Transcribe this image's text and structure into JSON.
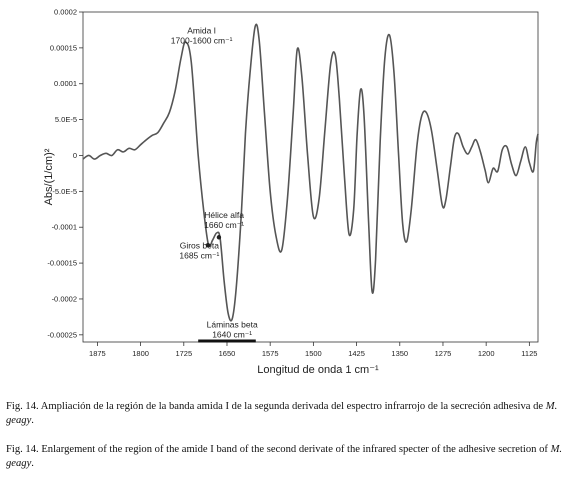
{
  "chart_data": {
    "type": "line",
    "xlabel": "Longitud de onda 1 cm⁻¹",
    "ylabel": "Abs/(1/cm)²",
    "xlim": [
      1900,
      1110
    ],
    "x_reversed": true,
    "ylim": [
      -0.00026,
      0.0002
    ],
    "x_ticks": [
      1875,
      1800,
      1725,
      1650,
      1575,
      1500,
      1425,
      1350,
      1275,
      1200,
      1125
    ],
    "y_ticks": [
      {
        "value": 0.0002,
        "label": "0.0002"
      },
      {
        "value": 0.00015,
        "label": "0.00015"
      },
      {
        "value": 0.0001,
        "label": "0.0001"
      },
      {
        "value": 5e-05,
        "label": "5.0E-5"
      },
      {
        "value": 0,
        "label": "0"
      },
      {
        "value": -5e-05,
        "label": "-5.0E-5"
      },
      {
        "value": -0.0001,
        "label": "-0.0001"
      },
      {
        "value": -0.00015,
        "label": "-0.00015"
      },
      {
        "value": -0.0002,
        "label": "-0.0002"
      },
      {
        "value": -0.00025,
        "label": "-0.00025"
      }
    ],
    "grid": false,
    "band_bar": {
      "x_start": 1700,
      "x_end": 1600
    },
    "series": [
      {
        "points": [
          [
            1900,
            -5e-06
          ],
          [
            1890,
            0.0
          ],
          [
            1880,
            -5e-06
          ],
          [
            1870,
            0.0
          ],
          [
            1860,
            3e-06
          ],
          [
            1850,
            0.0
          ],
          [
            1840,
            8e-06
          ],
          [
            1830,
            5e-06
          ],
          [
            1820,
            1e-05
          ],
          [
            1810,
            8e-06
          ],
          [
            1800,
            1.5e-05
          ],
          [
            1790,
            2.2e-05
          ],
          [
            1780,
            2.8e-05
          ],
          [
            1770,
            3.2e-05
          ],
          [
            1760,
            4.5e-05
          ],
          [
            1750,
            6e-05
          ],
          [
            1740,
            9e-05
          ],
          [
            1730,
            0.000135
          ],
          [
            1722,
            0.000158
          ],
          [
            1712,
            0.00013
          ],
          [
            1700,
            0.0
          ],
          [
            1690,
            -8e-05
          ],
          [
            1682,
            -0.000125
          ],
          [
            1675,
            -0.000118
          ],
          [
            1668,
            -0.000108
          ],
          [
            1662,
            -0.000115
          ],
          [
            1655,
            -0.000175
          ],
          [
            1648,
            -0.00022
          ],
          [
            1641,
            -0.000228
          ],
          [
            1634,
            -0.000185
          ],
          [
            1625,
            -8e-05
          ],
          [
            1618,
            3e-05
          ],
          [
            1610,
            0.000115
          ],
          [
            1601,
            0.00018
          ],
          [
            1594,
            0.00016
          ],
          [
            1585,
            6e-05
          ],
          [
            1575,
            -5e-05
          ],
          [
            1565,
            -0.000112
          ],
          [
            1555,
            -0.000132
          ],
          [
            1545,
            -6e-05
          ],
          [
            1535,
            6e-05
          ],
          [
            1528,
            0.000148
          ],
          [
            1520,
            0.00011
          ],
          [
            1510,
            0.0
          ],
          [
            1500,
            -8.5e-05
          ],
          [
            1490,
            -6e-05
          ],
          [
            1480,
            3.5e-05
          ],
          [
            1470,
            0.000128
          ],
          [
            1462,
            0.00014
          ],
          [
            1455,
            8e-05
          ],
          [
            1446,
            -3e-05
          ],
          [
            1438,
            -0.00011
          ],
          [
            1430,
            -7.5e-05
          ],
          [
            1424,
            3e-05
          ],
          [
            1418,
            9.2e-05
          ],
          [
            1412,
            5.5e-05
          ],
          [
            1404,
            -9.5e-05
          ],
          [
            1398,
            -0.00019
          ],
          [
            1392,
            -0.000145
          ],
          [
            1384,
            2e-05
          ],
          [
            1376,
            0.000135
          ],
          [
            1368,
            0.000168
          ],
          [
            1360,
            0.000115
          ],
          [
            1352,
            0.0
          ],
          [
            1345,
            -9.5e-05
          ],
          [
            1338,
            -0.00012
          ],
          [
            1330,
            -7.5e-05
          ],
          [
            1320,
            1.5e-05
          ],
          [
            1312,
            5.5e-05
          ],
          [
            1304,
            6e-05
          ],
          [
            1295,
            3.5e-05
          ],
          [
            1285,
            -2e-05
          ],
          [
            1276,
            -7e-05
          ],
          [
            1270,
            -6.2e-05
          ],
          [
            1262,
            -1.5e-05
          ],
          [
            1255,
            2.5e-05
          ],
          [
            1248,
            3e-05
          ],
          [
            1240,
            1.2e-05
          ],
          [
            1232,
            2e-06
          ],
          [
            1225,
            1.2e-05
          ],
          [
            1218,
            2.2e-05
          ],
          [
            1210,
            5e-06
          ],
          [
            1202,
            -2e-05
          ],
          [
            1196,
            -3.8e-05
          ],
          [
            1188,
            -1.8e-05
          ],
          [
            1180,
            -2.2e-05
          ],
          [
            1172,
            8e-06
          ],
          [
            1164,
            1.2e-05
          ],
          [
            1156,
            -1.2e-05
          ],
          [
            1148,
            -2.8e-05
          ],
          [
            1140,
            -8e-06
          ],
          [
            1132,
            1.2e-05
          ],
          [
            1125,
            -1e-05
          ],
          [
            1118,
            -2.2e-05
          ],
          [
            1113,
            1.8e-05
          ],
          [
            1110,
            3e-05
          ]
        ]
      }
    ],
    "annotations": [
      {
        "lines": [
          "Amida I",
          "1700-1600 cm⁻¹"
        ],
        "x": 1694,
        "y": 0.00017,
        "align": "middle"
      },
      {
        "lines": [
          "Hélice alfa",
          "1660 cm⁻¹"
        ],
        "x": 1655,
        "y": -8.7e-05,
        "align": "middle"
      },
      {
        "lines": [
          "Giros beta",
          "1685 cm⁻¹"
        ],
        "x": 1698,
        "y": -0.00013,
        "align": "middle"
      },
      {
        "lines": [
          "Láminas beta",
          "1640 cm⁻¹"
        ],
        "x": 1641,
        "y": -0.00024,
        "align": "middle"
      }
    ],
    "markers": [
      {
        "x": 1683,
        "y": -0.000125
      },
      {
        "x": 1664,
        "y": -0.000114
      }
    ]
  },
  "caption_es": {
    "text": "Fig. 14. Ampliación de la región de la banda amida I de la segunda derivada del espectro infrarrojo de la secreción adhesiva de ",
    "species": "M. geagy",
    "end": "."
  },
  "caption_en": {
    "text": "Fig. 14. Enlargement of the region of the amide I band of the second derivate of the infrared specter of the adhesive secretion of ",
    "species": "M. geagy",
    "end": "."
  }
}
